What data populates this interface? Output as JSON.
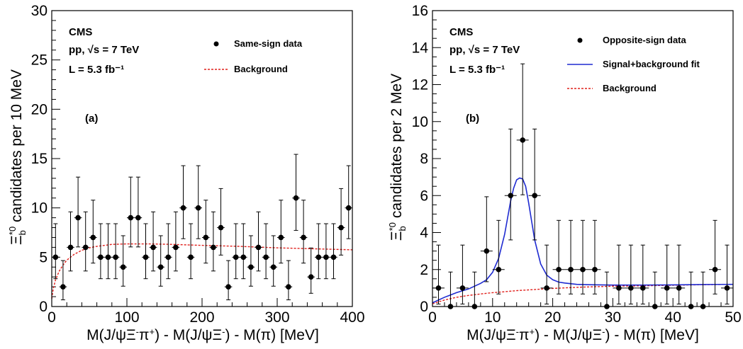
{
  "chart_data": [
    {
      "type": "scatter",
      "panel_label": "(a)",
      "experiment": "CMS",
      "energy_text": "pp,  √s = 7 TeV",
      "lumi_text": "L = 5.3 fb⁻¹",
      "xlabel": "M(J/ψΞ⁻π⁺) - M(J/ψΞ⁻) - M(π) [MeV]",
      "ylabel": "Ξb*0 candidates per 10 MeV",
      "xlim": [
        0,
        400
      ],
      "ylim": [
        0,
        30
      ],
      "xticks": [
        "0",
        "100",
        "200",
        "300",
        "400"
      ],
      "yticks": [
        "0",
        "5",
        "10",
        "15",
        "20",
        "25",
        "30"
      ],
      "legend": [
        {
          "label": "Same-sign data",
          "style": "marker"
        },
        {
          "label": "Background",
          "style": "dashed",
          "color": "#e0201c"
        }
      ],
      "series": [
        {
          "name": "Same-sign data",
          "x": [
            5,
            15,
            25,
            35,
            45,
            55,
            65,
            75,
            85,
            95,
            105,
            115,
            125,
            135,
            145,
            155,
            165,
            175,
            185,
            195,
            205,
            215,
            225,
            235,
            245,
            255,
            265,
            275,
            285,
            295,
            305,
            315,
            325,
            335,
            345,
            355,
            365,
            375,
            385,
            395
          ],
          "y": [
            5,
            2,
            6,
            9,
            6,
            7,
            5,
            5,
            5,
            4,
            9,
            9,
            5,
            6,
            4,
            5,
            6,
            10,
            5,
            10,
            7,
            6,
            8,
            2,
            5,
            5,
            4,
            6,
            5,
            4,
            7,
            2,
            11,
            7,
            3,
            5,
            5,
            5,
            8,
            10
          ],
          "xerr": 5
        },
        {
          "name": "Background",
          "color": "#e0201c",
          "x": [
            0,
            2,
            5,
            10,
            15,
            20,
            30,
            40,
            50,
            60,
            80,
            100,
            130,
            160,
            200,
            250,
            300,
            350,
            400
          ],
          "y": [
            0.8,
            1.8,
            2.7,
            3.6,
            4.2,
            4.7,
            5.3,
            5.7,
            5.95,
            6.1,
            6.3,
            6.35,
            6.35,
            6.3,
            6.2,
            6.1,
            5.95,
            5.85,
            5.75
          ]
        }
      ]
    },
    {
      "type": "scatter",
      "panel_label": "(b)",
      "experiment": "CMS",
      "energy_text": "pp,  √s = 7 TeV",
      "lumi_text": "L = 5.3 fb⁻¹",
      "xlabel": "M(J/ψΞ⁻π⁺) - M(J/ψΞ⁻) - M(π) [MeV]",
      "ylabel": "Ξb*0 candidates per 2 MeV",
      "xlim": [
        0,
        50
      ],
      "ylim": [
        0,
        16
      ],
      "xticks": [
        "0",
        "10",
        "20",
        "30",
        "40",
        "50"
      ],
      "yticks": [
        "0",
        "2",
        "4",
        "6",
        "8",
        "10",
        "12",
        "14",
        "16"
      ],
      "legend": [
        {
          "label": "Opposite-sign data",
          "style": "marker"
        },
        {
          "label": "Signal+background fit",
          "style": "line",
          "color": "#1f2bd1"
        },
        {
          "label": "Background",
          "style": "dashed",
          "color": "#e0201c"
        }
      ],
      "series": [
        {
          "name": "Opposite-sign data",
          "x": [
            1,
            3,
            5,
            7,
            9,
            11,
            13,
            15,
            17,
            19,
            21,
            23,
            25,
            27,
            29,
            31,
            33,
            35,
            37,
            39,
            41,
            43,
            45,
            47,
            49
          ],
          "y": [
            1,
            0,
            1,
            0,
            3,
            2,
            6,
            9,
            6,
            1,
            2,
            2,
            2,
            2,
            0,
            1,
            1,
            1,
            0,
            1,
            1,
            0,
            0,
            2,
            1
          ],
          "xerr": 1
        },
        {
          "name": "Signal+background fit",
          "color": "#1f2bd1",
          "x": [
            0,
            2,
            4,
            6,
            8,
            9,
            10,
            11,
            12,
            12.5,
            13,
            13.5,
            14,
            14.5,
            15,
            15.5,
            16,
            16.5,
            17,
            18,
            19,
            20,
            21,
            22,
            24,
            26,
            30,
            35,
            40,
            45,
            50
          ],
          "y": [
            0.2,
            0.5,
            0.75,
            0.95,
            1.25,
            1.45,
            1.85,
            2.6,
            3.9,
            4.8,
            5.7,
            6.4,
            6.85,
            6.95,
            6.9,
            6.5,
            5.6,
            4.6,
            3.6,
            2.3,
            1.7,
            1.45,
            1.32,
            1.27,
            1.2,
            1.18,
            1.16,
            1.16,
            1.17,
            1.19,
            1.2
          ]
        },
        {
          "name": "Background",
          "color": "#e0201c",
          "x": [
            0,
            2,
            4,
            6,
            8,
            10,
            12,
            14,
            16,
            18,
            20,
            25,
            30,
            35,
            40,
            45,
            50
          ],
          "y": [
            0.15,
            0.35,
            0.5,
            0.6,
            0.68,
            0.75,
            0.8,
            0.86,
            0.9,
            0.94,
            0.98,
            1.05,
            1.1,
            1.12,
            1.15,
            1.18,
            1.2
          ]
        }
      ]
    }
  ]
}
